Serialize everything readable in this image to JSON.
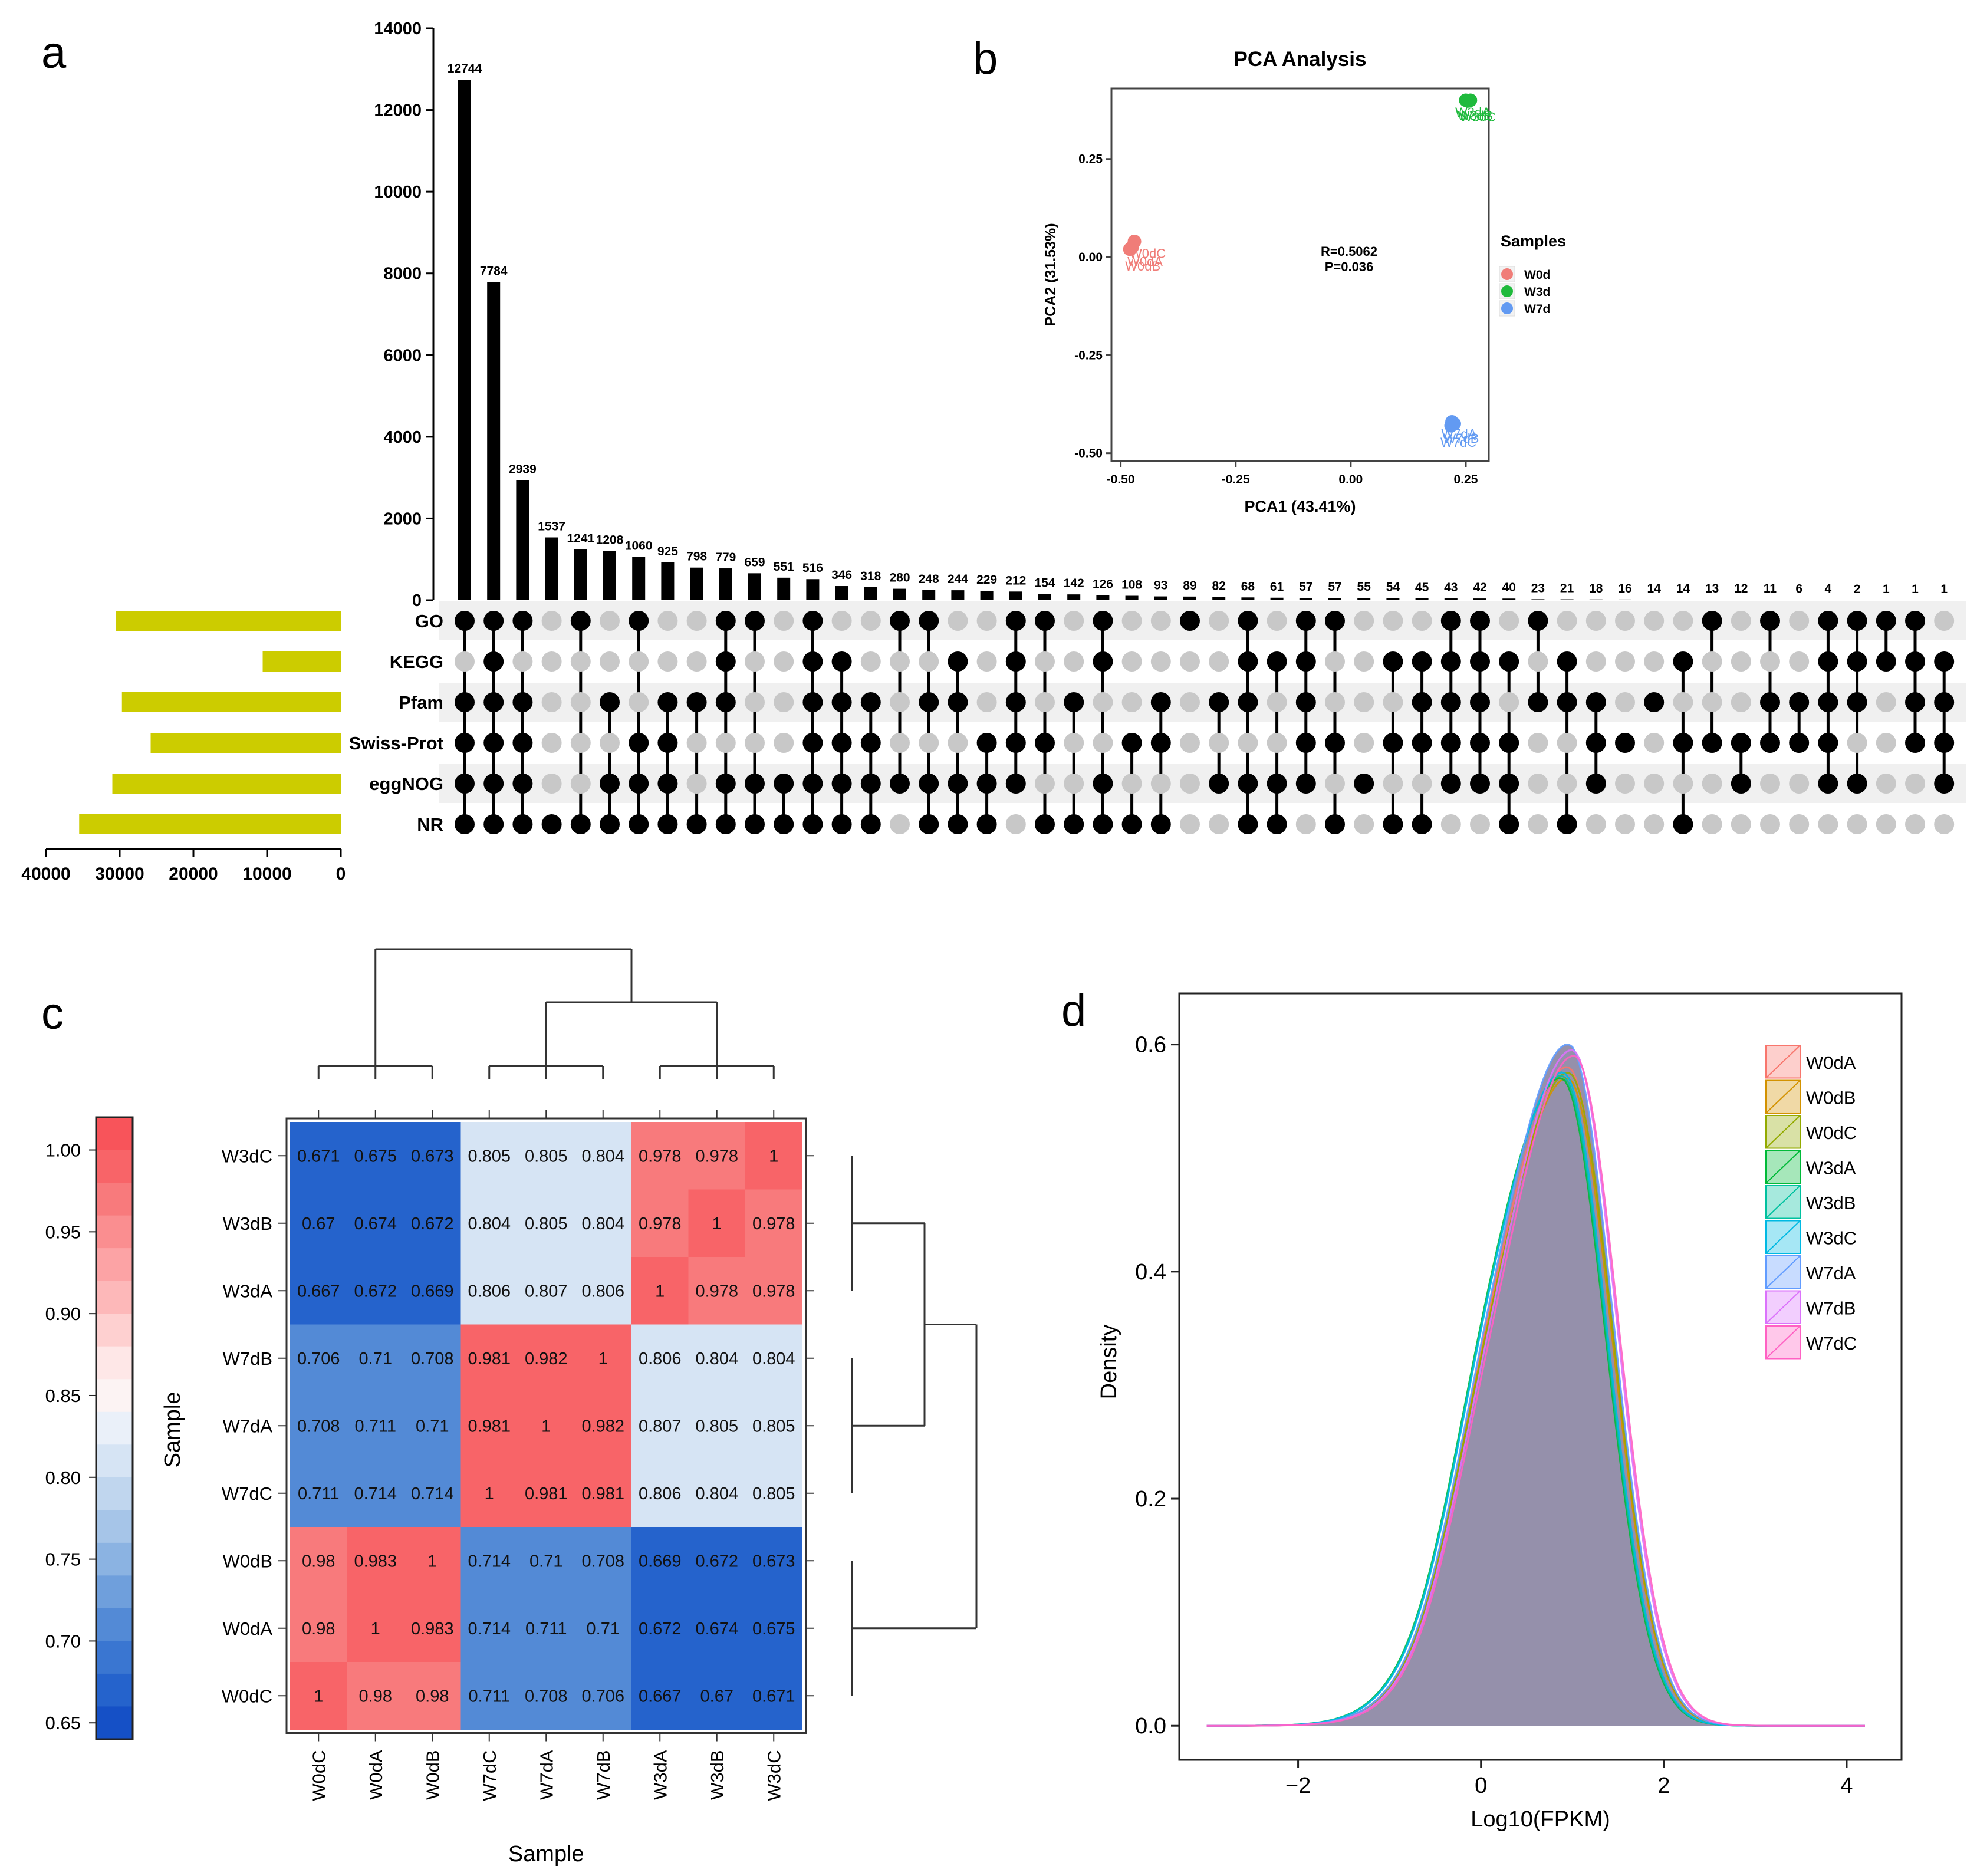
{
  "panels": {
    "a": "a",
    "b": "b",
    "c": "c",
    "d": "d"
  },
  "chart_data": [
    {
      "panel": "a",
      "type": "bar",
      "subtype": "upset",
      "y_ticks": [
        0,
        2000,
        4000,
        6000,
        8000,
        10000,
        12000,
        14000
      ],
      "ylim": [
        0,
        14000
      ],
      "sets": [
        "GO",
        "KEGG",
        "Pfam",
        "Swiss-Prot",
        "eggNOG",
        "NR"
      ],
      "set_sizes": [
        30500,
        10600,
        29700,
        25800,
        31000,
        35500
      ],
      "set_size_ticks": [
        40000,
        30000,
        20000,
        10000,
        0
      ],
      "set_size_xlim": [
        40000,
        0
      ],
      "set_bar_color": "#cccc00",
      "dot_on_color": "#000000",
      "dot_off_color": "#c8c8c8",
      "stripe_color": "#f0f0f0",
      "intersections": [
        {
          "value": 12744,
          "sets": [
            1,
            0,
            1,
            1,
            1,
            1
          ]
        },
        {
          "value": 7784,
          "sets": [
            1,
            1,
            1,
            1,
            1,
            1
          ]
        },
        {
          "value": 2939,
          "sets": [
            1,
            0,
            1,
            1,
            1,
            1
          ]
        },
        {
          "value": 1537,
          "sets": [
            0,
            0,
            0,
            0,
            0,
            1
          ]
        },
        {
          "value": 1241,
          "sets": [
            1,
            0,
            0,
            0,
            0,
            1
          ]
        },
        {
          "value": 1208,
          "sets": [
            0,
            0,
            1,
            0,
            1,
            1
          ]
        },
        {
          "value": 1060,
          "sets": [
            1,
            0,
            0,
            1,
            1,
            1
          ]
        },
        {
          "value": 925,
          "sets": [
            0,
            0,
            1,
            1,
            1,
            1
          ]
        },
        {
          "value": 798,
          "sets": [
            0,
            0,
            1,
            0,
            0,
            1
          ]
        },
        {
          "value": 779,
          "sets": [
            1,
            1,
            1,
            0,
            1,
            1
          ]
        },
        {
          "value": 659,
          "sets": [
            1,
            0,
            0,
            0,
            1,
            1
          ]
        },
        {
          "value": 551,
          "sets": [
            0,
            0,
            0,
            0,
            1,
            1
          ]
        },
        {
          "value": 516,
          "sets": [
            1,
            1,
            1,
            1,
            1,
            1
          ]
        },
        {
          "value": 346,
          "sets": [
            0,
            1,
            1,
            1,
            1,
            1
          ]
        },
        {
          "value": 318,
          "sets": [
            0,
            0,
            1,
            1,
            1,
            1
          ]
        },
        {
          "value": 280,
          "sets": [
            1,
            0,
            0,
            0,
            1,
            0
          ]
        },
        {
          "value": 248,
          "sets": [
            1,
            0,
            1,
            0,
            1,
            1
          ]
        },
        {
          "value": 244,
          "sets": [
            0,
            1,
            1,
            0,
            1,
            1
          ]
        },
        {
          "value": 229,
          "sets": [
            0,
            0,
            0,
            1,
            1,
            1
          ]
        },
        {
          "value": 212,
          "sets": [
            1,
            1,
            1,
            1,
            1,
            0
          ]
        },
        {
          "value": 154,
          "sets": [
            1,
            0,
            0,
            1,
            0,
            1
          ]
        },
        {
          "value": 142,
          "sets": [
            0,
            0,
            1,
            0,
            0,
            1
          ]
        },
        {
          "value": 126,
          "sets": [
            1,
            1,
            0,
            0,
            1,
            1
          ]
        },
        {
          "value": 108,
          "sets": [
            0,
            0,
            0,
            1,
            0,
            1
          ]
        },
        {
          "value": 93,
          "sets": [
            0,
            0,
            1,
            1,
            0,
            1
          ]
        },
        {
          "value": 89,
          "sets": [
            1,
            0,
            0,
            0,
            0,
            0
          ]
        },
        {
          "value": 82,
          "sets": [
            0,
            0,
            1,
            0,
            1,
            0
          ]
        },
        {
          "value": 68,
          "sets": [
            1,
            1,
            1,
            0,
            1,
            1
          ]
        },
        {
          "value": 61,
          "sets": [
            0,
            1,
            0,
            0,
            1,
            1
          ]
        },
        {
          "value": 57,
          "sets": [
            1,
            1,
            1,
            1,
            1,
            0
          ]
        },
        {
          "value": 57,
          "sets": [
            1,
            0,
            0,
            1,
            0,
            1
          ]
        },
        {
          "value": 55,
          "sets": [
            0,
            0,
            0,
            0,
            1,
            0
          ]
        },
        {
          "value": 54,
          "sets": [
            0,
            1,
            0,
            1,
            0,
            1
          ]
        },
        {
          "value": 45,
          "sets": [
            0,
            1,
            1,
            1,
            0,
            1
          ]
        },
        {
          "value": 43,
          "sets": [
            1,
            1,
            1,
            1,
            1,
            0
          ]
        },
        {
          "value": 42,
          "sets": [
            1,
            1,
            1,
            1,
            1,
            0
          ]
        },
        {
          "value": 40,
          "sets": [
            0,
            1,
            0,
            1,
            1,
            1
          ]
        },
        {
          "value": 23,
          "sets": [
            1,
            0,
            1,
            0,
            0,
            0
          ]
        },
        {
          "value": 21,
          "sets": [
            0,
            1,
            1,
            0,
            0,
            1
          ]
        },
        {
          "value": 18,
          "sets": [
            0,
            0,
            1,
            1,
            1,
            0
          ]
        },
        {
          "value": 16,
          "sets": [
            0,
            0,
            0,
            1,
            0,
            0
          ]
        },
        {
          "value": 14,
          "sets": [
            0,
            0,
            1,
            0,
            0,
            0
          ]
        },
        {
          "value": 14,
          "sets": [
            0,
            1,
            0,
            1,
            0,
            1
          ]
        },
        {
          "value": 13,
          "sets": [
            1,
            0,
            0,
            1,
            0,
            0
          ]
        },
        {
          "value": 12,
          "sets": [
            0,
            0,
            0,
            1,
            1,
            0
          ]
        },
        {
          "value": 11,
          "sets": [
            1,
            0,
            1,
            1,
            0,
            0
          ]
        },
        {
          "value": 6,
          "sets": [
            0,
            0,
            1,
            1,
            0,
            0
          ]
        },
        {
          "value": 4,
          "sets": [
            1,
            1,
            1,
            1,
            1,
            0
          ]
        },
        {
          "value": 2,
          "sets": [
            1,
            1,
            1,
            0,
            1,
            0
          ]
        },
        {
          "value": 1,
          "sets": [
            1,
            1,
            0,
            0,
            0,
            0
          ]
        },
        {
          "value": 1,
          "sets": [
            1,
            1,
            1,
            1,
            0,
            0
          ]
        },
        {
          "value": 1,
          "sets": [
            0,
            1,
            1,
            1,
            1,
            0
          ]
        }
      ]
    },
    {
      "panel": "b",
      "type": "scatter",
      "title": "PCA Analysis",
      "xlabel": "PCA1 (43.41%)",
      "ylabel": "PCA2 (31.53%)",
      "xlim": [
        -0.52,
        0.3
      ],
      "ylim": [
        -0.52,
        0.43
      ],
      "x_ticks": [
        "-0.50",
        "-0.25",
        "0.00",
        "0.25"
      ],
      "x_tick_values": [
        -0.5,
        -0.25,
        0.0,
        0.25
      ],
      "y_ticks": [
        "0.25",
        "0.00",
        "-0.25",
        "-0.50"
      ],
      "y_tick_values": [
        0.25,
        0.0,
        -0.25,
        -0.5
      ],
      "annotation": [
        "R=0.5062",
        "P=0.036"
      ],
      "legend_title": "Samples",
      "legend_position": "right",
      "series": [
        {
          "name": "W0d",
          "color": "#f07d78",
          "points": [
            [
              -0.47,
              0.04
            ],
            [
              -0.475,
              0.025
            ],
            [
              -0.48,
              0.02
            ]
          ],
          "point_labels": [
            "W0dC",
            "W0dA",
            "W0dB"
          ]
        },
        {
          "name": "W3d",
          "color": "#1fba3c",
          "points": [
            [
              0.25,
              0.4
            ],
            [
              0.255,
              0.398
            ],
            [
              0.26,
              0.4
            ]
          ],
          "point_labels": [
            "W3dA",
            "W3dB",
            "W3dC"
          ]
        },
        {
          "name": "W7d",
          "color": "#629af2",
          "points": [
            [
              0.22,
              -0.42
            ],
            [
              0.225,
              -0.425
            ],
            [
              0.218,
              -0.43
            ]
          ],
          "point_labels": [
            "W7dA",
            "W7dB",
            "W7dC"
          ]
        }
      ]
    },
    {
      "panel": "c",
      "type": "heatmap",
      "xlabel": "Sample",
      "ylabel": "Sample",
      "rows": [
        "W3dC",
        "W3dB",
        "W3dA",
        "W7dB",
        "W7dA",
        "W7dC",
        "W0dB",
        "W0dA",
        "W0dC"
      ],
      "columns": [
        "W0dC",
        "W0dA",
        "W0dB",
        "W7dC",
        "W7dA",
        "W7dB",
        "W3dA",
        "W3dB",
        "W3dC"
      ],
      "values": [
        [
          "0.671",
          "0.675",
          "0.673",
          "0.805",
          "0.805",
          "0.804",
          "0.978",
          "0.978",
          "1"
        ],
        [
          "0.67",
          "0.674",
          "0.672",
          "0.804",
          "0.805",
          "0.804",
          "0.978",
          "1",
          "0.978"
        ],
        [
          "0.667",
          "0.672",
          "0.669",
          "0.806",
          "0.807",
          "0.806",
          "1",
          "0.978",
          "0.978"
        ],
        [
          "0.706",
          "0.71",
          "0.708",
          "0.981",
          "0.982",
          "1",
          "0.806",
          "0.804",
          "0.804"
        ],
        [
          "0.708",
          "0.711",
          "0.71",
          "0.981",
          "1",
          "0.982",
          "0.807",
          "0.805",
          "0.805"
        ],
        [
          "0.711",
          "0.714",
          "0.714",
          "1",
          "0.981",
          "0.981",
          "0.806",
          "0.804",
          "0.805"
        ],
        [
          "0.98",
          "0.983",
          "1",
          "0.714",
          "0.71",
          "0.708",
          "0.669",
          "0.672",
          "0.673"
        ],
        [
          "0.98",
          "1",
          "0.983",
          "0.714",
          "0.711",
          "0.71",
          "0.672",
          "0.674",
          "0.675"
        ],
        [
          "1",
          "0.98",
          "0.98",
          "0.711",
          "0.708",
          "0.706",
          "0.667",
          "0.67",
          "0.671"
        ]
      ],
      "colorbar_ticks": [
        "1.00",
        "0.95",
        "0.90",
        "0.85",
        "0.80",
        "0.75",
        "0.70",
        "0.65"
      ],
      "colorbar_tick_values": [
        1.0,
        0.95,
        0.9,
        0.85,
        0.8,
        0.75,
        0.7,
        0.65
      ],
      "colorbar_range": [
        0.64,
        1.02
      ],
      "colorbar_colors": [
        "#f8545a",
        "#f86468",
        "#f87a7c",
        "#fa8e90",
        "#fca3a5",
        "#fdb8b9",
        "#fed0d0",
        "#fee7e7",
        "#fcf3f3",
        "#eaf0f9",
        "#d6e4f4",
        "#c0d6ee",
        "#a6c5e8",
        "#8bb3e2",
        "#6f9fdc",
        "#538ad6",
        "#3a76d1",
        "#2563cc",
        "#1550c6"
      ]
    },
    {
      "panel": "d",
      "type": "area",
      "subtype": "density",
      "xlabel": "Log10(FPKM)",
      "ylabel": "Density",
      "xlim": [
        -3.3,
        4.6
      ],
      "ylim": [
        -0.03,
        0.645
      ],
      "x_ticks": [
        "−2",
        "0",
        "2",
        "4"
      ],
      "x_tick_values": [
        -2,
        0,
        2,
        4
      ],
      "y_ticks": [
        "0.0",
        "0.2",
        "0.4",
        "0.6"
      ],
      "y_tick_values": [
        0.0,
        0.2,
        0.4,
        0.6
      ],
      "legend_position": "top-right",
      "fill_color": "#8f8aa6",
      "series": [
        {
          "name": "W0dA",
          "color": "#f8766d",
          "peak_x": 0.95,
          "peak_y": 0.58
        },
        {
          "name": "W0dB",
          "color": "#d39200",
          "peak_x": 0.95,
          "peak_y": 0.57
        },
        {
          "name": "W0dC",
          "color": "#93aa00",
          "peak_x": 0.96,
          "peak_y": 0.575
        },
        {
          "name": "W3dA",
          "color": "#00ba38",
          "peak_x": 0.88,
          "peak_y": 0.57
        },
        {
          "name": "W3dB",
          "color": "#00c19f",
          "peak_x": 0.89,
          "peak_y": 0.572
        },
        {
          "name": "W3dC",
          "color": "#00b9e3",
          "peak_x": 0.9,
          "peak_y": 0.575
        },
        {
          "name": "W7dA",
          "color": "#619cff",
          "peak_x": 0.96,
          "peak_y": 0.6
        },
        {
          "name": "W7dB",
          "color": "#db72fb",
          "peak_x": 1.0,
          "peak_y": 0.595
        },
        {
          "name": "W7dC",
          "color": "#ff61c3",
          "peak_x": 1.02,
          "peak_y": 0.59
        }
      ]
    }
  ]
}
